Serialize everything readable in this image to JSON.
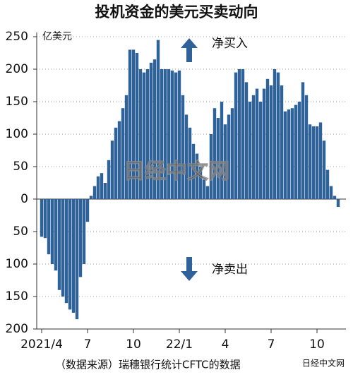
{
  "chart_data": {
    "type": "bar",
    "title": "投机资金的美元买卖动向",
    "unit_label": "亿美元",
    "annotations": {
      "buy": "净买入",
      "sell": "净卖出"
    },
    "source": "（数据来源）瑞穗银行统计CFTC的数据",
    "watermark": "日经中文网",
    "corner_mark": "日经中文网",
    "color": "#2f6299",
    "grid": true,
    "ylim": [
      -200,
      250
    ],
    "yticks": [
      250,
      200,
      150,
      100,
      50,
      0,
      {
        "value": -50,
        "label": "50"
      },
      {
        "value": -100,
        "label": "100"
      },
      {
        "value": -150,
        "label": "150"
      },
      {
        "value": -200,
        "label": "200"
      }
    ],
    "categories": [
      "2021/4",
      null,
      null,
      null,
      null,
      null,
      null,
      null,
      null,
      null,
      null,
      null,
      null,
      "7",
      null,
      null,
      null,
      null,
      null,
      null,
      null,
      null,
      null,
      null,
      null,
      null,
      "10",
      null,
      null,
      null,
      null,
      null,
      null,
      null,
      null,
      null,
      null,
      null,
      null,
      "22/1",
      null,
      null,
      null,
      null,
      null,
      null,
      null,
      null,
      null,
      null,
      null,
      null,
      "4",
      null,
      null,
      null,
      null,
      null,
      null,
      null,
      null,
      null,
      null,
      null,
      null,
      "7",
      null,
      null,
      null,
      null,
      null,
      null,
      null,
      null,
      null,
      null,
      null,
      null,
      "10",
      null,
      null,
      null,
      null,
      null,
      null
    ],
    "values": [
      -58,
      -60,
      -85,
      -100,
      -110,
      -140,
      -150,
      -160,
      -170,
      -175,
      -185,
      -120,
      -100,
      -35,
      5,
      20,
      35,
      40,
      25,
      60,
      90,
      110,
      120,
      140,
      160,
      230,
      230,
      225,
      200,
      195,
      200,
      210,
      215,
      245,
      200,
      200,
      200,
      198,
      195,
      198,
      160,
      130,
      110,
      85,
      70,
      50,
      30,
      20,
      100,
      140,
      125,
      150,
      115,
      130,
      140,
      195,
      200,
      200,
      180,
      150,
      160,
      170,
      150,
      170,
      185,
      175,
      200,
      195,
      175,
      135,
      138,
      140,
      145,
      150,
      180,
      160,
      115,
      112,
      112,
      118,
      90,
      45,
      20,
      5,
      -12
    ]
  }
}
